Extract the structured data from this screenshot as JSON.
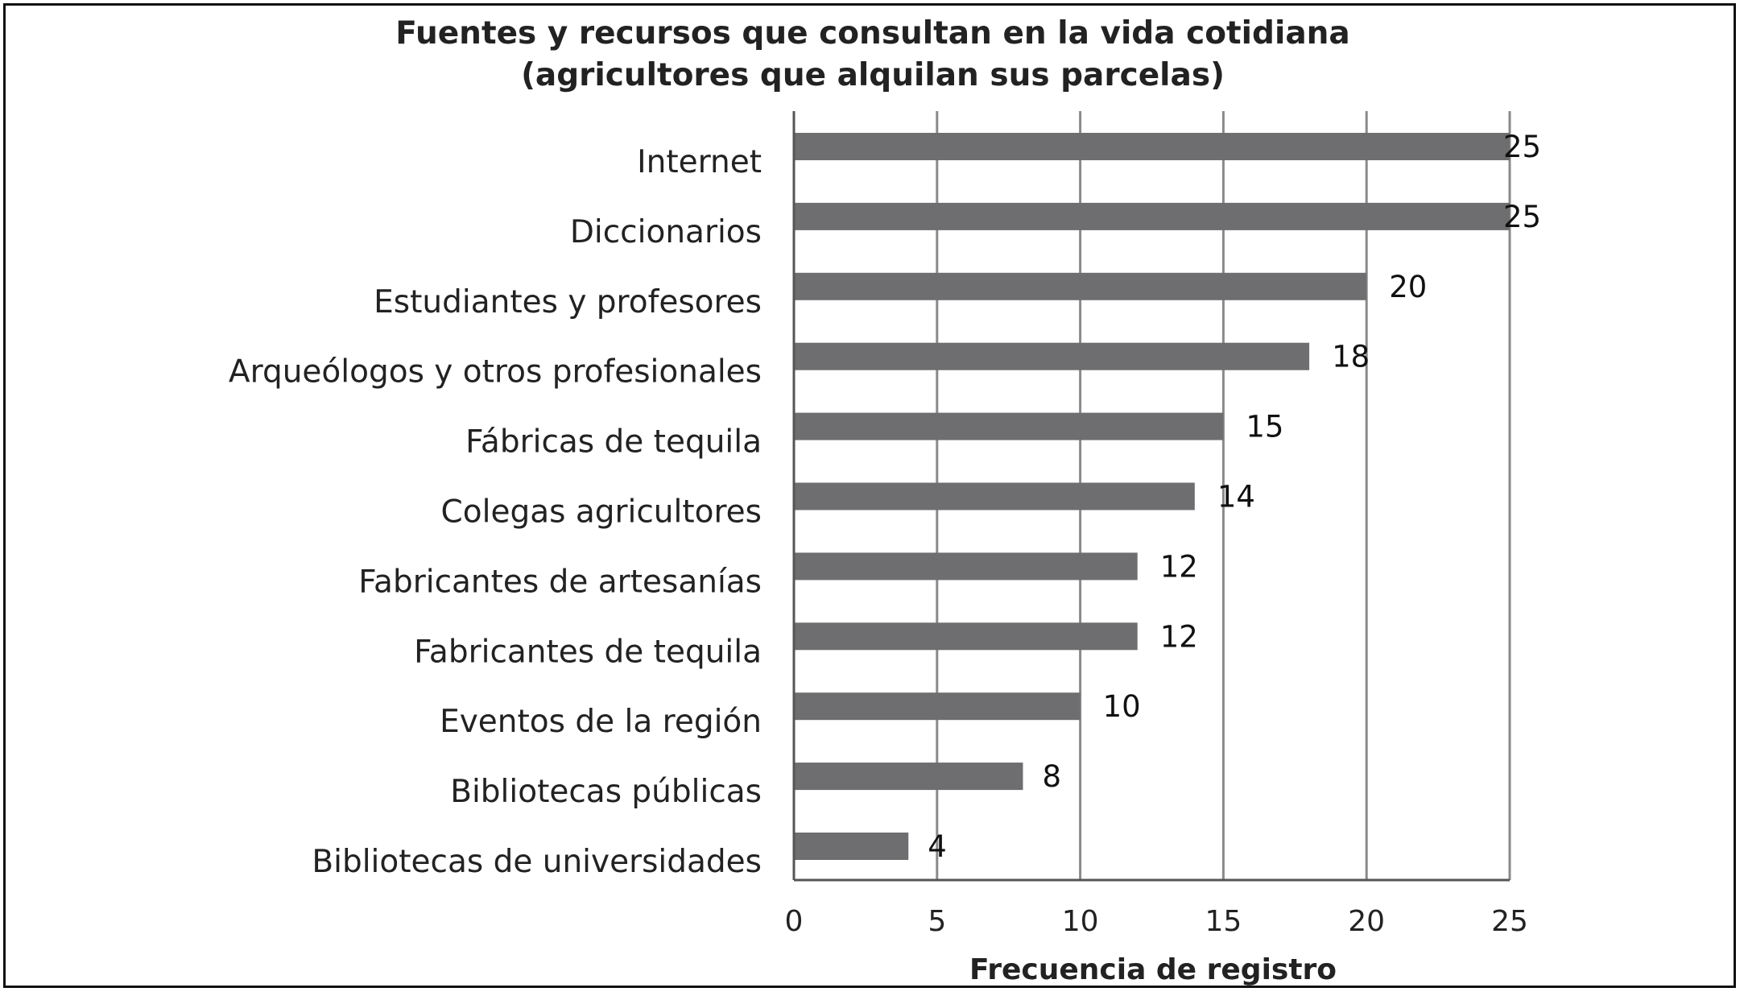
{
  "chart_data": {
    "type": "bar",
    "orientation": "horizontal",
    "title_line1": "Fuentes y recursos que consultan en la vida cotidiana",
    "title_line2": "(agricultores que alquilan sus parcelas)",
    "xlabel": "Frecuencia de registro",
    "ylabel": "",
    "xlim": [
      0,
      25
    ],
    "x_ticks": [
      "0",
      "5",
      "10",
      "15",
      "20",
      "25"
    ],
    "grid": "vertical",
    "legend": "none",
    "bar_color": "#6e6e70",
    "gridline_color": "#8a8a8a",
    "categories": [
      "Internet",
      "Diccionarios",
      "Estudiantes y profesores",
      "Arqueólogos y otros profesionales",
      "Fábricas de tequila",
      "Colegas agricultores",
      "Fabricantes de artesanías",
      "Fabricantes de tequila",
      "Eventos de la región",
      "Bibliotecas públicas",
      "Bibliotecas de universidades"
    ],
    "values": [
      25,
      25,
      20,
      18,
      15,
      14,
      12,
      12,
      10,
      8,
      4
    ],
    "value_labels": [
      "25",
      "25",
      "20",
      "18",
      "15",
      "14",
      "12",
      "12",
      "10",
      "8",
      "4"
    ]
  }
}
